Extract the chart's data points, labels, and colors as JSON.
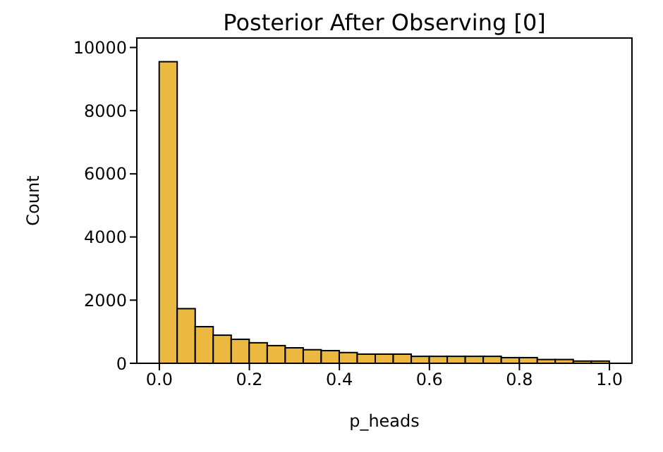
{
  "chart_data": {
    "type": "histogram",
    "title": "Posterior After Observing [0]",
    "xlabel": "p_heads",
    "ylabel": "Count",
    "bins": [
      0,
      0.04,
      0.08,
      0.12,
      0.16,
      0.2,
      0.24,
      0.28,
      0.32,
      0.36,
      0.4,
      0.44,
      0.48,
      0.52,
      0.56,
      0.6,
      0.64,
      0.68,
      0.72,
      0.76,
      0.8,
      0.84,
      0.88,
      0.92,
      0.96,
      1
    ],
    "values": [
      9550,
      1730,
      1160,
      890,
      760,
      650,
      560,
      490,
      430,
      400,
      340,
      290,
      290,
      290,
      220,
      220,
      220,
      220,
      220,
      180,
      180,
      120,
      120,
      70,
      70
    ],
    "color": "#ebb840",
    "xlim": [
      -0.05,
      1.05
    ],
    "xticks": [
      {
        "value": 0,
        "label": "0.0"
      },
      {
        "value": 0.2,
        "label": "0.2"
      },
      {
        "value": 0.4,
        "label": "0.4"
      },
      {
        "value": 0.6,
        "label": "0.6"
      },
      {
        "value": 0.8,
        "label": "0.8"
      },
      {
        "value": 1,
        "label": "1.0"
      }
    ],
    "ylim": [
      0,
      10300
    ],
    "yticks": [
      0,
      2000,
      4000,
      6000,
      8000,
      10000
    ],
    "grid": false
  }
}
